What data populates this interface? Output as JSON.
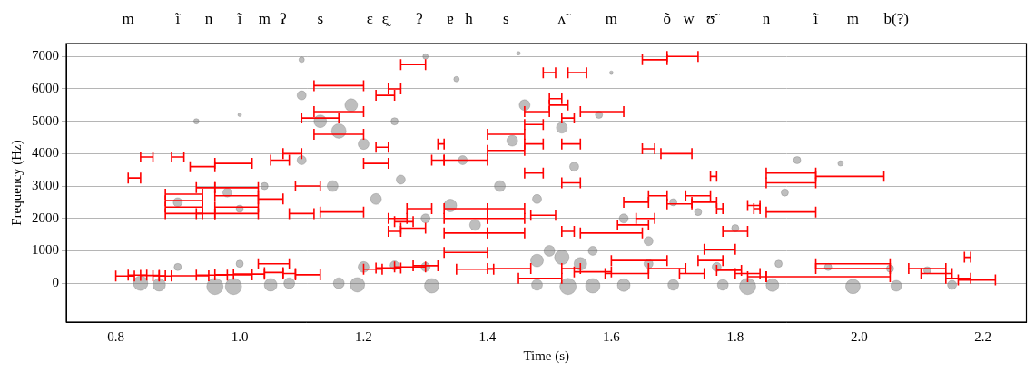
{
  "chart_data": {
    "type": "scatter",
    "x_label": "Time (s)",
    "y_label": "Frequency (Hz)",
    "xlim": [
      0.72,
      2.27
    ],
    "ylim": [
      -1200,
      7400
    ],
    "xticks": [
      0.8,
      {
        "value": 1,
        "label": "1.0"
      },
      1.2,
      1.4,
      1.6,
      1.8,
      {
        "value": 2,
        "label": "2.0"
      },
      2.2
    ],
    "yticks": [
      0,
      1000,
      2000,
      3000,
      4000,
      5000,
      6000,
      7000
    ],
    "grid": true,
    "annotations": [
      {
        "x": 0.82,
        "text": "m"
      },
      {
        "x": 0.9,
        "text": "ĩ"
      },
      {
        "x": 0.95,
        "text": "n"
      },
      {
        "x": 1.0,
        "text": "ĩ"
      },
      {
        "x": 1.04,
        "text": "m"
      },
      {
        "x": 1.07,
        "text": "ʔ"
      },
      {
        "x": 1.13,
        "text": "s"
      },
      {
        "x": 1.21,
        "text": "ɛ"
      },
      {
        "x": 1.235,
        "text": "ɛ̰"
      },
      {
        "x": 1.29,
        "text": "ʔ"
      },
      {
        "x": 1.34,
        "text": "ɐ"
      },
      {
        "x": 1.37,
        "text": "h"
      },
      {
        "x": 1.43,
        "text": "s"
      },
      {
        "x": 1.52,
        "text": "ʌ̃"
      },
      {
        "x": 1.6,
        "text": "m"
      },
      {
        "x": 1.69,
        "text": "õ"
      },
      {
        "x": 1.725,
        "text": "w"
      },
      {
        "x": 1.76,
        "text": "ʊ̃"
      },
      {
        "x": 1.85,
        "text": "n"
      },
      {
        "x": 1.93,
        "text": "ĩ"
      },
      {
        "x": 1.99,
        "text": "m"
      },
      {
        "x": 2.06,
        "text": "b(?)"
      }
    ],
    "points": {
      "color": "#7f7f7f",
      "x": [
        0.84,
        0.87,
        0.96,
        0.99,
        1.05,
        1.08,
        1.16,
        1.19,
        1.31,
        1.48,
        1.53,
        1.57,
        1.62,
        1.7,
        1.78,
        1.82,
        1.86,
        1.99,
        2.06,
        2.15,
        0.9,
        1.0,
        1.2,
        1.25,
        1.3,
        1.48,
        1.52,
        1.55,
        1.5,
        1.57,
        1.66,
        1.77,
        1.87,
        1.95,
        2.05,
        2.11,
        0.9,
        0.98,
        1.0,
        1.04,
        1.1,
        1.13,
        1.16,
        1.18,
        1.1,
        1.2,
        1.15,
        1.22,
        1.26,
        1.3,
        1.34,
        1.38,
        1.36,
        1.42,
        1.44,
        1.46,
        1.48,
        1.52,
        1.54,
        1.58,
        1.62,
        1.66,
        1.7,
        1.74,
        1.8,
        1.88,
        1.9,
        1.97,
        0.93,
        1.1,
        1.3,
        1.45,
        1.6,
        1.0,
        1.35,
        1.25
      ],
      "y": [
        0,
        -50,
        -100,
        -100,
        -50,
        0,
        0,
        -50,
        -80,
        -50,
        -100,
        -80,
        -60,
        -50,
        -50,
        -100,
        -60,
        -100,
        -80,
        -50,
        500,
        600,
        500,
        550,
        500,
        700,
        800,
        600,
        1000,
        1000,
        600,
        500,
        600,
        500,
        450,
        400,
        2500,
        2800,
        2300,
        3000,
        3800,
        5000,
        4700,
        5500,
        5800,
        4300,
        3000,
        2600,
        3200,
        2000,
        2400,
        1800,
        3800,
        3000,
        4400,
        5500,
        2600,
        4800,
        3600,
        5200,
        2000,
        1300,
        2500,
        2200,
        1700,
        2800,
        3800,
        3700,
        5000,
        6900,
        7000,
        7100,
        6500,
        5200,
        6300,
        5000
      ],
      "size": [
        8,
        7,
        9,
        9,
        7,
        6,
        6,
        8,
        8,
        6,
        9,
        8,
        7,
        6,
        6,
        9,
        7,
        8,
        6,
        5,
        4,
        4,
        6,
        5,
        5,
        7,
        8,
        7,
        6,
        5,
        5,
        5,
        4,
        4,
        4,
        4,
        5,
        5,
        4,
        4,
        5,
        7,
        8,
        7,
        5,
        6,
        6,
        6,
        5,
        5,
        7,
        6,
        5,
        6,
        6,
        6,
        5,
        6,
        5,
        4,
        5,
        5,
        4,
        4,
        4,
        4,
        4,
        3,
        3,
        3,
        3,
        2,
        2,
        2,
        3,
        4
      ]
    },
    "intervals": {
      "color": "#ff0000",
      "x_start": [
        0.8,
        0.82,
        0.84,
        0.86,
        0.87,
        0.89,
        0.93,
        0.96,
        0.99,
        1.03,
        1.04,
        1.07,
        1.09,
        1.2,
        1.22,
        1.25,
        1.28,
        1.33,
        1.35,
        1.4,
        1.45,
        1.52,
        1.54,
        1.59,
        1.6,
        1.66,
        1.71,
        1.74,
        1.75,
        1.77,
        1.8,
        1.82,
        1.85,
        1.93,
        1.93,
        2.08,
        2.1,
        2.14,
        2.16,
        2.17,
        0.88,
        0.88,
        0.88,
        0.88,
        0.93,
        0.93,
        0.96,
        0.96,
        0.96,
        0.96,
        1.03,
        1.05,
        1.07,
        1.08,
        1.09,
        1.1,
        1.12,
        1.12,
        1.12,
        1.13,
        1.2,
        1.22,
        1.22,
        1.24,
        1.24,
        1.24,
        1.25,
        1.26,
        1.27,
        1.26,
        1.31,
        1.32,
        1.33,
        1.33,
        1.33,
        1.33,
        1.4,
        1.4,
        1.4,
        1.4,
        1.4,
        1.46,
        1.46,
        1.46,
        1.46,
        1.47,
        1.49,
        1.5,
        1.5,
        1.52,
        1.52,
        1.52,
        1.53,
        1.55,
        1.52,
        1.55,
        1.61,
        1.62,
        1.64,
        1.65,
        1.65,
        1.66,
        1.68,
        1.69,
        1.69,
        1.72,
        1.73,
        1.76,
        1.77,
        1.78,
        1.82,
        1.83,
        1.85,
        1.85,
        1.85,
        1.93,
        0.82,
        0.84,
        0.89,
        0.92,
        0.96
      ],
      "x_end": [
        0.83,
        0.85,
        0.87,
        0.88,
        0.89,
        0.95,
        0.98,
        1.02,
        1.04,
        1.08,
        1.07,
        1.09,
        1.13,
        1.23,
        1.26,
        1.3,
        1.32,
        1.4,
        1.41,
        1.47,
        1.52,
        1.55,
        1.6,
        1.66,
        1.69,
        1.72,
        1.75,
        1.78,
        1.8,
        1.81,
        1.84,
        1.85,
        2.05,
        2.05,
        2.05,
        2.14,
        2.15,
        2.18,
        2.22,
        2.18,
        0.94,
        0.94,
        0.94,
        0.94,
        0.96,
        0.96,
        1.03,
        1.03,
        1.03,
        1.03,
        1.07,
        1.08,
        1.1,
        1.12,
        1.13,
        1.16,
        1.2,
        1.2,
        1.2,
        1.2,
        1.24,
        1.24,
        1.25,
        1.26,
        1.27,
        1.26,
        1.28,
        1.3,
        1.31,
        1.3,
        1.33,
        1.33,
        1.4,
        1.4,
        1.4,
        1.4,
        1.46,
        1.46,
        1.46,
        1.46,
        1.46,
        1.5,
        1.49,
        1.49,
        1.49,
        1.51,
        1.51,
        1.52,
        1.53,
        1.54,
        1.55,
        1.55,
        1.56,
        1.62,
        1.54,
        1.65,
        1.66,
        1.66,
        1.67,
        1.67,
        1.69,
        1.69,
        1.73,
        1.74,
        1.73,
        1.76,
        1.77,
        1.77,
        1.78,
        1.82,
        1.84,
        1.84,
        1.93,
        1.93,
        1.93,
        2.04,
        0.84,
        0.86,
        0.91,
        0.96,
        1.02
      ],
      "y": [
        220,
        250,
        240,
        230,
        220,
        230,
        250,
        260,
        280,
        600,
        330,
        300,
        260,
        430,
        470,
        500,
        540,
        950,
        430,
        450,
        150,
        450,
        350,
        300,
        700,
        450,
        300,
        700,
        1050,
        400,
        300,
        200,
        200,
        450,
        600,
        450,
        300,
        150,
        100,
        800,
        2150,
        2350,
        2550,
        2750,
        2950,
        2150,
        2150,
        2350,
        2700,
        2950,
        2600,
        3800,
        4000,
        2150,
        3000,
        5100,
        4600,
        5300,
        6100,
        2200,
        3700,
        4200,
        5800,
        6000,
        2000,
        1600,
        1900,
        1700,
        2300,
        6750,
        3800,
        4300,
        3800,
        2300,
        2000,
        1550,
        4600,
        4100,
        2300,
        2000,
        1550,
        5300,
        4900,
        4300,
        3400,
        2100,
        6500,
        5700,
        5500,
        5100,
        4300,
        3100,
        6500,
        5300,
        1600,
        1550,
        1800,
        2500,
        2000,
        4150,
        6900,
        2700,
        4000,
        7000,
        2450,
        2700,
        2500,
        3300,
        2300,
        1600,
        2400,
        2300,
        3400,
        3100,
        2200,
        3300,
        3250,
        3900,
        3900,
        3600,
        3700
      ]
    }
  }
}
